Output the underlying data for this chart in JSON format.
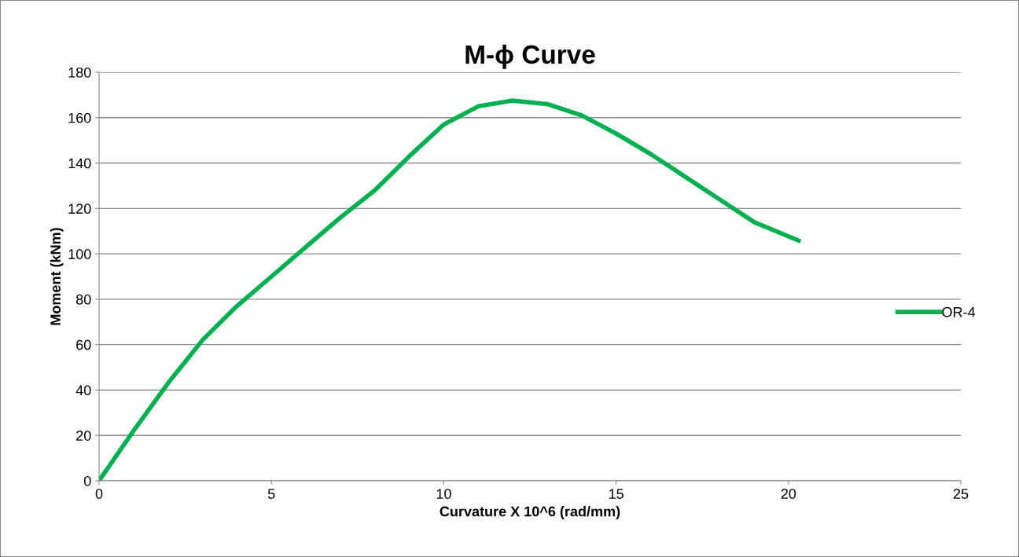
{
  "chart_data": {
    "type": "line",
    "title": "M-ϕ Curve",
    "xlabel": "Curvature X 10^6 (rad/mm)",
    "ylabel": "Moment (kNm)",
    "series": [
      {
        "name": "OR-4",
        "color": "#00b050",
        "x": [
          0,
          1,
          2,
          3,
          4,
          5,
          6,
          7,
          8,
          9,
          10,
          11,
          12,
          13,
          14,
          15,
          16,
          17,
          18,
          19,
          20.35
        ],
        "values": [
          0,
          22,
          43,
          62,
          77,
          90,
          103,
          116,
          128,
          143,
          157,
          165,
          167.5,
          166,
          161,
          153,
          144,
          134,
          124,
          114,
          105.5
        ]
      }
    ],
    "xlim": [
      0,
      25
    ],
    "xticks": [
      0,
      5,
      10,
      15,
      20,
      25
    ],
    "ylim": [
      0,
      180
    ],
    "yticks": [
      0,
      20,
      40,
      60,
      80,
      100,
      120,
      140,
      160,
      180
    ],
    "grid": "y",
    "legend": "right",
    "marker": "none",
    "line_style": "solid"
  }
}
